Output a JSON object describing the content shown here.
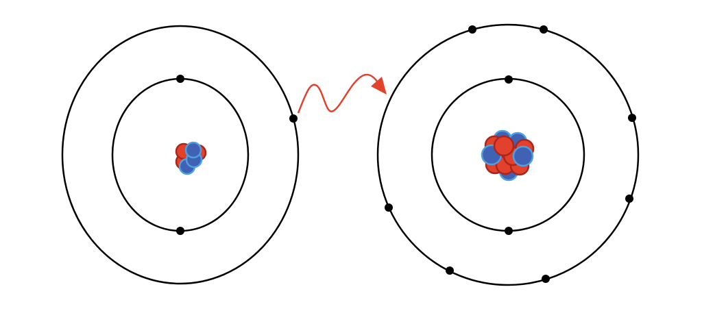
{
  "colors": {
    "proton": "#e2412c",
    "neutron": "#3f62b4",
    "electron": "#000000",
    "arrow": "#e2412c"
  },
  "atoms": [
    {
      "shells": [
        2,
        1
      ]
    },
    {
      "shells": [
        2,
        7
      ]
    }
  ],
  "arrow": {
    "direction": "left-to-right",
    "style": "wavy"
  }
}
